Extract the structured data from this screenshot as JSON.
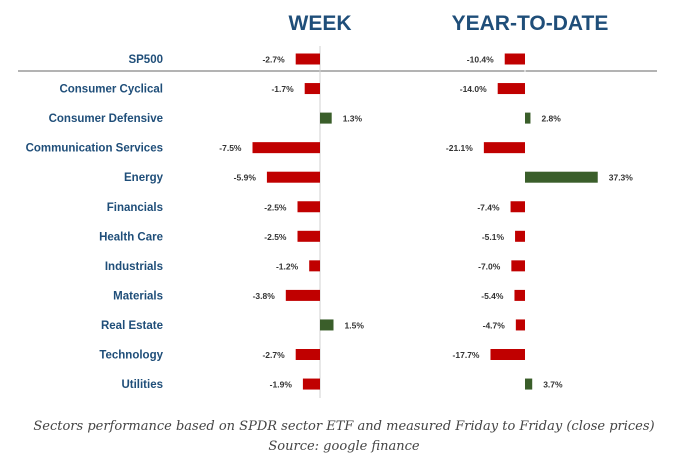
{
  "chart_data": {
    "type": "bar",
    "panels": [
      {
        "title": "WEEK",
        "key": "week"
      },
      {
        "title": "YEAR-TO-DATE",
        "key": "ytd"
      }
    ],
    "categories": [
      "SP500",
      "Consumer Cyclical",
      "Consumer Defensive",
      "Communication Services",
      "Energy",
      "Financials",
      "Health Care",
      "Industrials",
      "Materials",
      "Real Estate",
      "Technology",
      "Utilities"
    ],
    "series": [
      {
        "key": "week",
        "values": [
          -2.7,
          -1.7,
          1.3,
          -7.5,
          -5.9,
          -2.5,
          -2.5,
          -1.2,
          -3.8,
          1.5,
          -2.7,
          -1.9
        ],
        "labels": [
          "-2.7%",
          "-1.7%",
          "1.3%",
          "-7.5%",
          "-5.9%",
          "-2.5%",
          "-2.5%",
          "-1.2%",
          "-3.8%",
          "1.5%",
          "-2.7%",
          "-1.9%"
        ]
      },
      {
        "key": "ytd",
        "values": [
          -10.4,
          -14.0,
          2.8,
          -21.1,
          37.3,
          -7.4,
          -5.1,
          -7.0,
          -5.4,
          -4.7,
          -17.7,
          3.7
        ],
        "labels": [
          "-10.4%",
          "-14.0%",
          "2.8%",
          "-21.1%",
          "37.3%",
          "-7.4%",
          "-5.1%",
          "-7.0%",
          "-5.4%",
          "-4.7%",
          "-17.7%",
          "3.7%"
        ]
      }
    ],
    "colors": {
      "negative": "#c00000",
      "positive": "#3a5e2a",
      "title": "#1f4e79",
      "category": "#1f4e79"
    }
  },
  "caption": {
    "line1": "Sectors performance based on SPDR sector ETF and measured Friday to Friday (close prices)",
    "line2": "Source: google finance"
  }
}
